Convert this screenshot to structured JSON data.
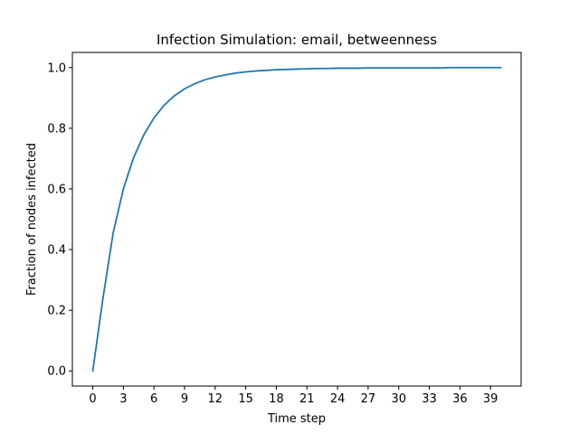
{
  "chart_data": {
    "type": "line",
    "title": "Infection Simulation: email, betweenness",
    "xlabel": "Time step",
    "ylabel": "Fraction of nodes infected",
    "xlim": [
      -2,
      42
    ],
    "ylim": [
      -0.05,
      1.05
    ],
    "x_ticks": [
      0,
      3,
      6,
      9,
      12,
      15,
      18,
      21,
      24,
      27,
      30,
      33,
      36,
      39
    ],
    "y_ticks": [
      0.0,
      0.2,
      0.4,
      0.6,
      0.8,
      1.0
    ],
    "y_tick_labels": [
      "0.0",
      "0.2",
      "0.4",
      "0.6",
      "0.8",
      "1.0"
    ],
    "grid": false,
    "legend": "none",
    "series": [
      {
        "color": "#1f77b4",
        "x": [
          0,
          1,
          2,
          3,
          4,
          5,
          6,
          7,
          8,
          9,
          10,
          11,
          12,
          13,
          14,
          15,
          16,
          17,
          18,
          19,
          20,
          21,
          22,
          23,
          24,
          25,
          26,
          27,
          28,
          29,
          30,
          31,
          32,
          33,
          34,
          35,
          36,
          37,
          38,
          39,
          40
        ],
        "values": [
          0.0,
          0.24,
          0.455,
          0.6,
          0.703,
          0.778,
          0.834,
          0.876,
          0.907,
          0.93,
          0.947,
          0.96,
          0.969,
          0.976,
          0.982,
          0.986,
          0.989,
          0.991,
          0.993,
          0.994,
          0.995,
          0.996,
          0.997,
          0.997,
          0.998,
          0.998,
          0.998,
          0.999,
          0.999,
          0.999,
          0.999,
          0.999,
          0.999,
          0.999,
          0.999,
          1.0,
          1.0,
          1.0,
          1.0,
          1.0,
          1.0
        ]
      }
    ]
  }
}
